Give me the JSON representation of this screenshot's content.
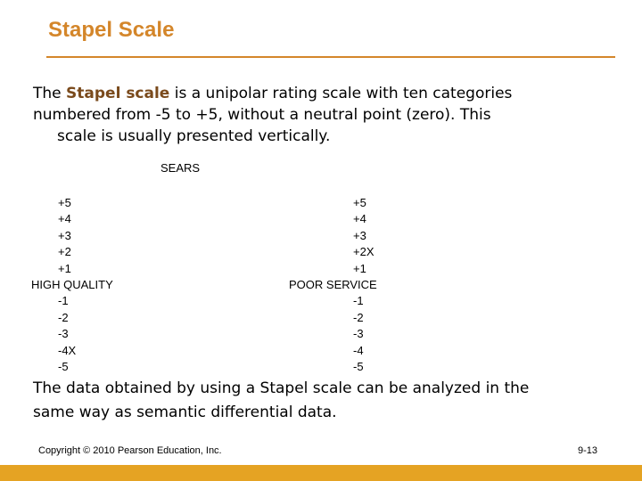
{
  "slide": {
    "title": "Stapel Scale",
    "intro": {
      "line1_pre": "The ",
      "line1_emph": "Stapel scale",
      "line1_post": " is a unipolar rating scale with ten categories",
      "line2": "numbered from -5 to +5, without a neutral point (zero).  This",
      "line3": "scale is usually presented vertically."
    },
    "brand": "SEARS",
    "left_scale": {
      "top": [
        "+5",
        "+4",
        "+3",
        "+2",
        "+1"
      ],
      "label": "HIGH QUALITY",
      "bottom": [
        "-1",
        "-2",
        "-3",
        "-4X",
        "-5"
      ]
    },
    "right_scale": {
      "top": [
        "+5",
        "+4",
        "+3",
        "+2X",
        "+1"
      ],
      "label": "POOR SERVICE",
      "bottom": [
        "-1",
        "-2",
        "-3",
        "-4",
        "-5"
      ]
    },
    "outro": {
      "line1": "The data obtained by using a Stapel scale can be analyzed in the",
      "line2": "same way as semantic differential data."
    },
    "footer": {
      "copyright": "Copyright © 2010 Pearson Education, Inc.",
      "page": "9-13"
    },
    "colors": {
      "title": "#d4862a",
      "rule": "#d4862a",
      "emphasis": "#7a4a1c",
      "bottom_bar": "#e5a323"
    }
  }
}
